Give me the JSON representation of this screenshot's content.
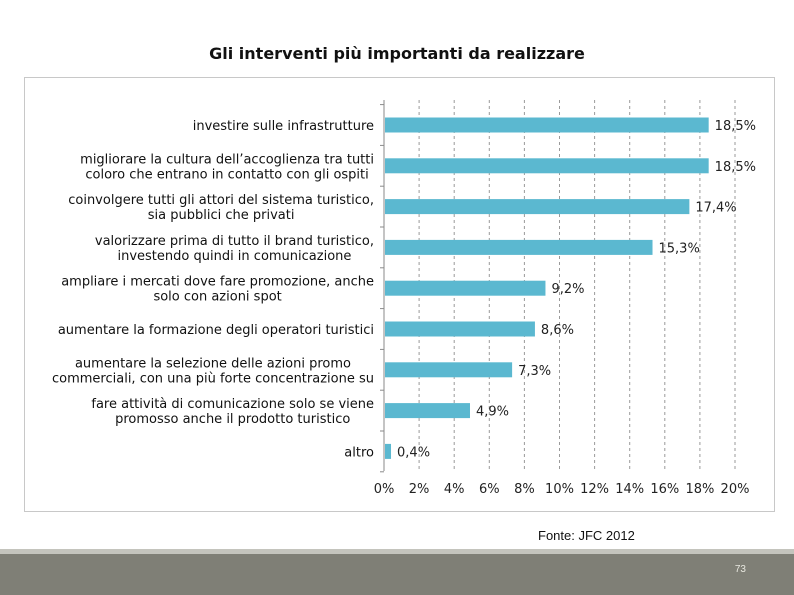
{
  "title": "Gli interventi più importanti da realizzare",
  "source": "Fonte: JFC 2012",
  "page_number": "73",
  "colors": {
    "bar": "#5bb8d0",
    "grid": "#9a9a9a",
    "footer": "#7f7f76"
  },
  "chart_data": {
    "type": "bar",
    "orientation": "horizontal",
    "categories": [
      [
        "investire sulle infrastrutture"
      ],
      [
        "migliorare la cultura dell’accoglienza tra tutti",
        "coloro che entrano in contatto con gli ospiti"
      ],
      [
        "coinvolgere tutti gli attori del sistema turistico,",
        "sia pubblici che privati"
      ],
      [
        "valorizzare prima di tutto il brand turistico,",
        "investendo quindi in comunicazione"
      ],
      [
        "ampliare i mercati dove fare promozione, anche",
        "solo con azioni spot"
      ],
      [
        "aumentare la formazione degli operatori turistici"
      ],
      [
        "aumentare la selezione delle azioni promo",
        "commerciali, con una più forte concentrazione su"
      ],
      [
        "fare attività di comunicazione solo se viene",
        "promosso anche il prodotto turistico"
      ],
      [
        "altro"
      ]
    ],
    "values": [
      18.5,
      18.5,
      17.4,
      15.3,
      9.2,
      8.6,
      7.3,
      4.9,
      0.4
    ],
    "value_labels": [
      "18,5%",
      "18,5%",
      "17,4%",
      "15,3%",
      "9,2%",
      "8,6%",
      "7,3%",
      "4,9%",
      "0,4%"
    ],
    "x_ticks": [
      "0%",
      "2%",
      "4%",
      "6%",
      "8%",
      "10%",
      "12%",
      "14%",
      "16%",
      "18%",
      "20%"
    ],
    "xlim": [
      0,
      20
    ],
    "grid": "vertical dashed"
  }
}
